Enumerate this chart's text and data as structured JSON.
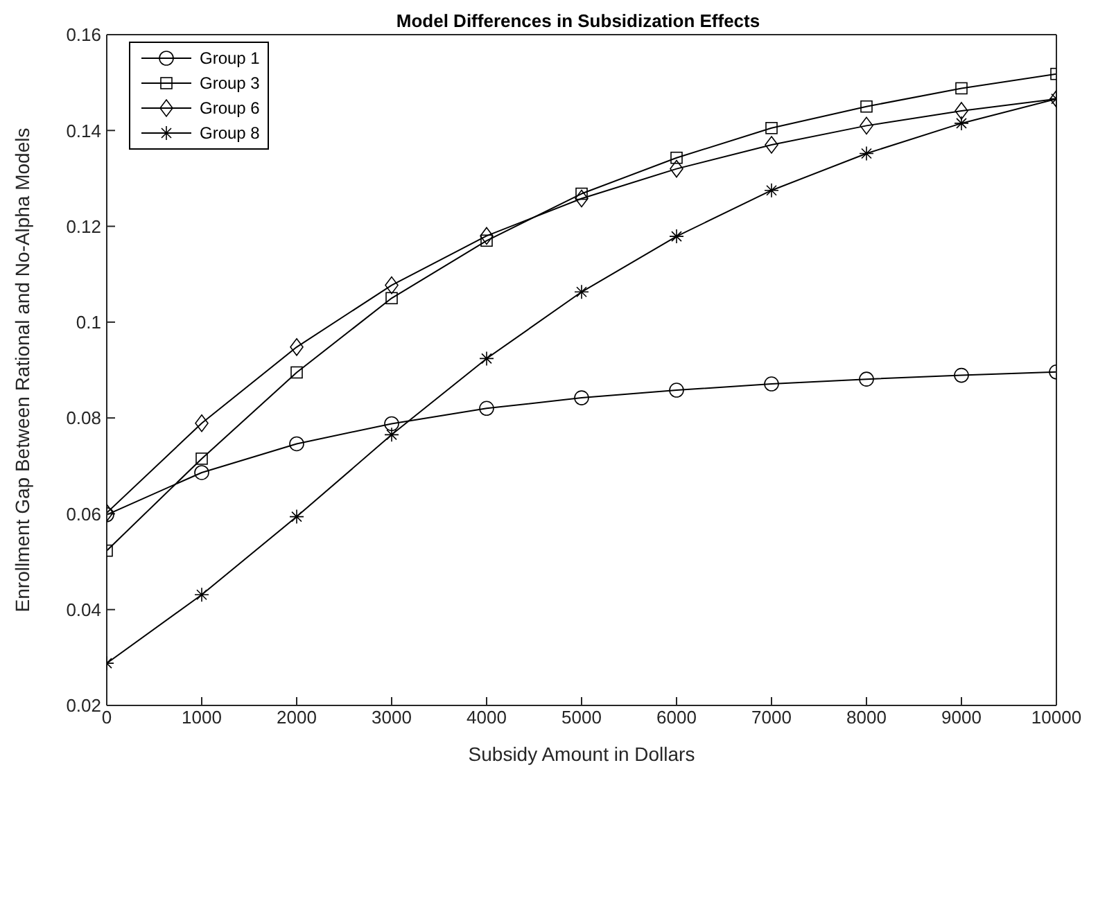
{
  "chart_data": {
    "type": "line",
    "title": "Model Differences in Subsidization Effects",
    "xlabel": "Subsidy Amount in Dollars",
    "ylabel": "Enrollment Gap Between Rational and No-Alpha Models",
    "x": [
      0,
      1000,
      2000,
      3000,
      4000,
      5000,
      6000,
      7000,
      8000,
      9000,
      10000
    ],
    "xlim": [
      0,
      10000
    ],
    "xticks": [
      0,
      1000,
      2000,
      3000,
      4000,
      5000,
      6000,
      7000,
      8000,
      9000,
      10000
    ],
    "ylim": [
      0.02,
      0.16
    ],
    "yticks": [
      0.02,
      0.04,
      0.06,
      0.08,
      0.1,
      0.12,
      0.14,
      0.16
    ],
    "grid": false,
    "legend": "top left",
    "line_style": "solid",
    "series": [
      {
        "name": "Group 1",
        "color": "#000000",
        "marker": "circle",
        "values": [
          0.0598,
          0.0686,
          0.0746,
          0.0788,
          0.082,
          0.0842,
          0.0858,
          0.0871,
          0.0881,
          0.0889,
          0.0896
        ]
      },
      {
        "name": "Group 3",
        "color": "#000000",
        "marker": "square",
        "values": [
          0.0523,
          0.0715,
          0.0895,
          0.105,
          0.117,
          0.1268,
          0.1343,
          0.1405,
          0.145,
          0.1488,
          0.1518
        ]
      },
      {
        "name": "Group 6",
        "color": "#000000",
        "marker": "diamond",
        "values": [
          0.0602,
          0.0789,
          0.0948,
          0.1077,
          0.118,
          0.1258,
          0.132,
          0.137,
          0.141,
          0.1441,
          0.1466
        ]
      },
      {
        "name": "Group 8",
        "color": "#000000",
        "marker": "cross",
        "values": [
          0.0288,
          0.0431,
          0.0594,
          0.0765,
          0.0924,
          0.1063,
          0.1179,
          0.1275,
          0.1352,
          0.1415,
          0.1466
        ]
      }
    ]
  }
}
